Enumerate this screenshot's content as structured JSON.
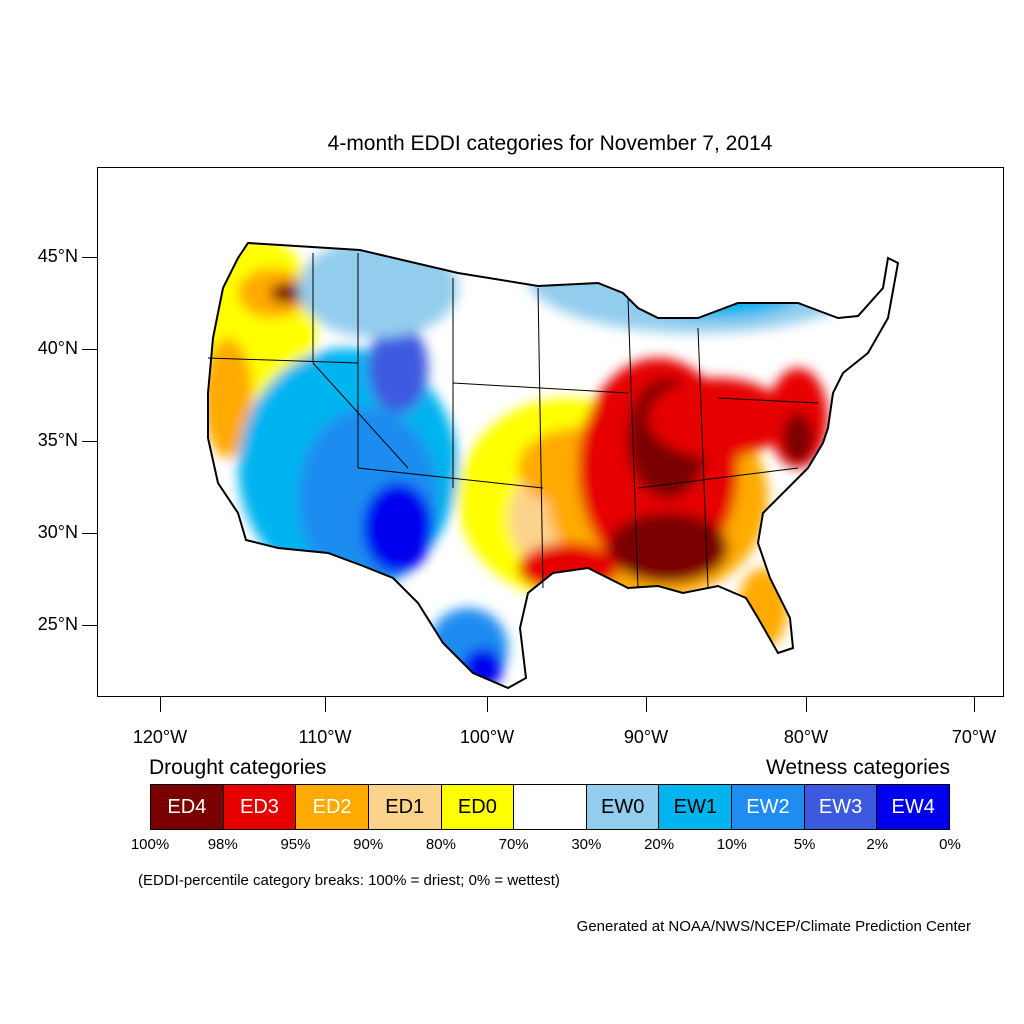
{
  "title": "4-month EDDI categories for November 7, 2014",
  "lat_labels": [
    "45°N",
    "40°N",
    "35°N",
    "30°N",
    "25°N"
  ],
  "lon_labels": [
    "120°W",
    "110°W",
    "100°W",
    "90°W",
    "80°W",
    "70°W"
  ],
  "legend": {
    "drought_heading": "Drought categories",
    "wetness_heading": "Wetness categories",
    "categories": [
      {
        "label": "ED4",
        "color": "#7a0000",
        "text_color": "#ffffff"
      },
      {
        "label": "ED3",
        "color": "#e60000",
        "text_color": "#ffffff"
      },
      {
        "label": "ED2",
        "color": "#ffaa00",
        "text_color": "#ffffff"
      },
      {
        "label": "ED1",
        "color": "#fcd38b",
        "text_color": "#000000"
      },
      {
        "label": "ED0",
        "color": "#ffff00",
        "text_color": "#000000"
      },
      {
        "label": "",
        "color": "#ffffff",
        "text_color": "#000000"
      },
      {
        "label": "EW0",
        "color": "#93cdee",
        "text_color": "#000000"
      },
      {
        "label": "EW1",
        "color": "#00b4f0",
        "text_color": "#000000"
      },
      {
        "label": "EW2",
        "color": "#1e8cf0",
        "text_color": "#ffffff"
      },
      {
        "label": "EW3",
        "color": "#3c5ae0",
        "text_color": "#ffffff"
      },
      {
        "label": "EW4",
        "color": "#0000f0",
        "text_color": "#ffffff"
      }
    ],
    "breaks": [
      "100%",
      "98%",
      "95%",
      "90%",
      "80%",
      "70%",
      "30%",
      "20%",
      "10%",
      "5%",
      "2%",
      "0%"
    ]
  },
  "note": "(EDDI-percentile category breaks: 100% = driest; 0% = wettest)",
  "credit": "Generated at NOAA/NWS/NCEP/Climate Prediction Center"
}
